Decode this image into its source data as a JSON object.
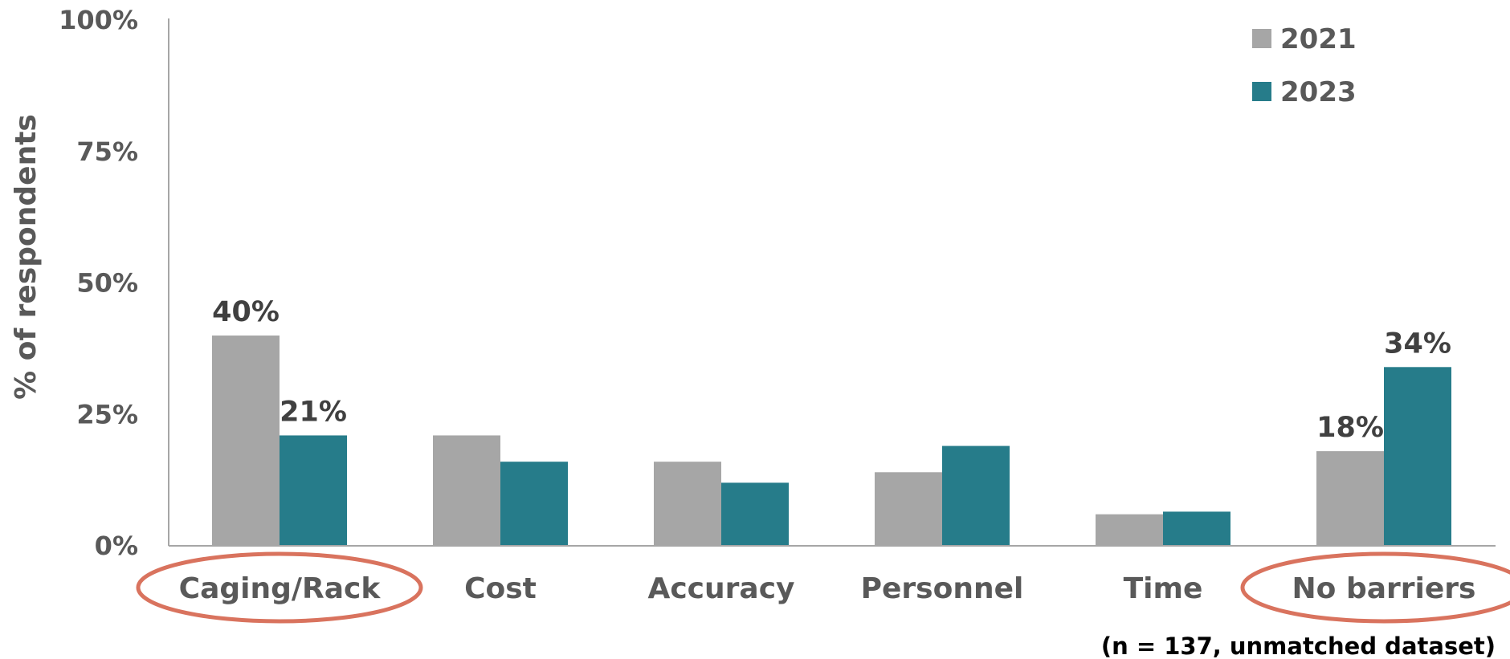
{
  "chart_data": {
    "type": "bar",
    "categories": [
      "Caging/Rack",
      "Cost",
      "Accuracy",
      "Personnel",
      "Time",
      "No barriers"
    ],
    "series": [
      {
        "name": "2021",
        "values": [
          40,
          21,
          16,
          14,
          6,
          18
        ],
        "color": "#a6a6a6"
      },
      {
        "name": "2023",
        "values": [
          21,
          16,
          12,
          19,
          6.5,
          34
        ],
        "color": "#267c8a"
      }
    ],
    "data_labels": [
      {
        "series": 0,
        "index": 0,
        "text": "40%"
      },
      {
        "series": 1,
        "index": 0,
        "text": "21%"
      },
      {
        "series": 0,
        "index": 5,
        "text": "18%"
      },
      {
        "series": 1,
        "index": 5,
        "text": "34%"
      }
    ],
    "ylabel": "% of respondents",
    "xlabel": "",
    "ylim": [
      0,
      100
    ],
    "yticks": [
      0,
      25,
      50,
      75,
      100
    ],
    "ytick_labels": [
      "0%",
      "25%",
      "50%",
      "75%",
      "100%"
    ],
    "legend_position": "top-right",
    "grid": false,
    "highlighted_categories": [
      0,
      5
    ],
    "highlight_color": "#d9735e",
    "note": "(n = 137, unmatched dataset)"
  }
}
